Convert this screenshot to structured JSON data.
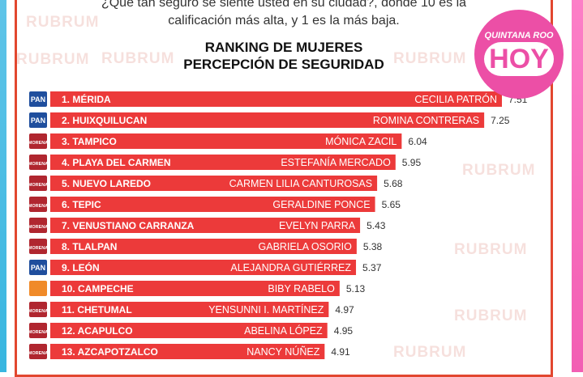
{
  "header": {
    "question_line1": "¿Qué tan seguro se siente usted en su ciudad?, donde 10 es la",
    "question_line2": "calificación más alta, y  1 es la más baja.",
    "title_line1": "RANKING DE MUJERES",
    "title_line2": "PERCEPCIÓN DE SEGURIDAD"
  },
  "watermark": "RUBRUM",
  "logo": {
    "top_text": "QUINTANA ROO",
    "main_text": "HOY"
  },
  "colors": {
    "bar": "#ec3a3a",
    "frame": "#e2472f",
    "badge_pink": "#ec4fa6",
    "pan_blue": "#1f4e9d",
    "morena_red": "#b0262f",
    "orange": "#f08a28"
  },
  "chart_data": {
    "type": "bar",
    "orientation": "horizontal",
    "title": "RANKING DE MUJERES PERCEPCIÓN DE SEGURIDAD",
    "categories": [
      "1. MÉRIDA",
      "2. HUIXQUILUCAN",
      "3. TAMPICO",
      "4. PLAYA DEL CARMEN",
      "5. NUEVO LAREDO",
      "6. TEPIC",
      "7. VENUSTIANO CARRANZA",
      "8. TLALPAN",
      "9. LEÓN",
      "10. CAMPECHE",
      "11. CHETUMAL",
      "12. ACAPULCO",
      "13. AZCAPOTZALCO"
    ],
    "names": [
      "CECILIA PATRÓN",
      "ROMINA CONTRERAS",
      "MÓNICA ZACIL",
      "ESTEFANÍA MERCADO",
      "CARMEN LILIA CANTUROSAS",
      "GERALDINE PONCE",
      "EVELYN PARRA",
      "GABRIELA OSORIO",
      "ALEJANDRA GUTIÉRREZ",
      "BIBY RABELO",
      "YENSUNNI I. MARTÍNEZ",
      "ABELINA LÓPEZ",
      "NANCY NÚÑEZ"
    ],
    "values": [
      7.51,
      7.25,
      6.04,
      5.95,
      5.68,
      5.65,
      5.43,
      5.38,
      5.37,
      5.13,
      4.97,
      4.95,
      4.91
    ],
    "value_labels": [
      "7.51",
      "7.25",
      "6.04",
      "5.95",
      "5.68",
      "5.65",
      "5.43",
      "5.38",
      "5.37",
      "5.13",
      "4.97",
      "4.95",
      "4.91"
    ],
    "party_icons": [
      "pan-logo",
      "pan-logo",
      "morena-logo",
      "morena-logo",
      "morena-logo",
      "morena-logo",
      "morena-logo",
      "morena-logo",
      "pan-logo",
      "mc-logo",
      "morena-logo",
      "morena-logo",
      "morena-logo"
    ],
    "party_labels": [
      "PAN",
      "PAN",
      "MORENA",
      "MORENA",
      "MORENA",
      "MORENA",
      "MORENA",
      "MORENA",
      "PAN",
      "",
      "MORENA",
      "MORENA",
      "MORENA"
    ]
  }
}
